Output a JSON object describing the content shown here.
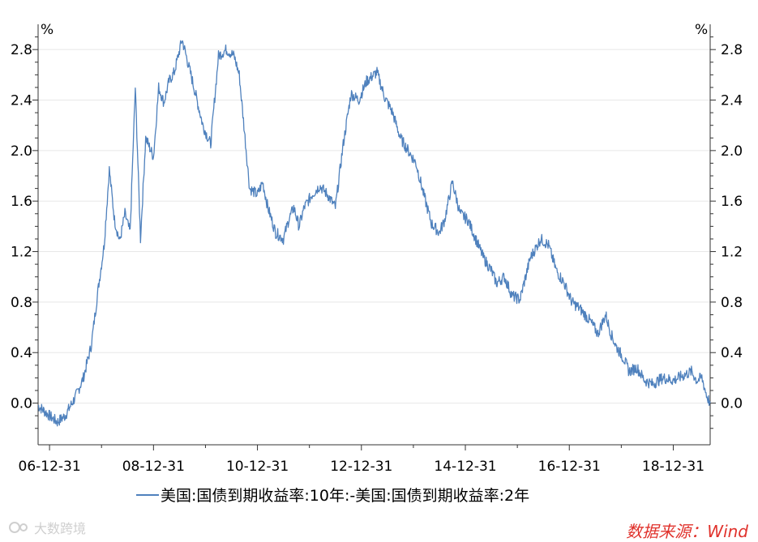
{
  "chart_data": {
    "type": "line",
    "left_unit": "%",
    "right_unit": "%",
    "y_ticks": [
      "0.0",
      "0.4",
      "0.8",
      "1.2",
      "1.6",
      "2.0",
      "2.4",
      "2.8"
    ],
    "x_ticks": [
      "06-12-31",
      "08-12-31",
      "10-12-31",
      "12-12-31",
      "14-12-31",
      "16-12-31",
      "18-12-31"
    ],
    "ylim": [
      -0.33,
      3.0
    ],
    "xlim": [
      2006.78,
      2019.71
    ],
    "grid": true,
    "legend_position": "bottom",
    "series": [
      {
        "name": "美国:国债到期收益率:10年:-美国:国债到期收益率:2年",
        "color": "#4f81bd",
        "x": [
          2006.78,
          2007.0,
          2007.15,
          2007.3,
          2007.5,
          2007.65,
          2007.8,
          2007.95,
          2008.05,
          2008.15,
          2008.25,
          2008.35,
          2008.45,
          2008.55,
          2008.65,
          2008.75,
          2008.85,
          2009.0,
          2009.1,
          2009.2,
          2009.3,
          2009.4,
          2009.55,
          2009.75,
          2009.95,
          2010.1,
          2010.25,
          2010.4,
          2010.55,
          2010.65,
          2010.75,
          2010.85,
          2011.0,
          2011.1,
          2011.2,
          2011.35,
          2011.5,
          2011.6,
          2011.7,
          2011.8,
          2011.9,
          2012.05,
          2012.2,
          2012.35,
          2012.5,
          2012.65,
          2012.8,
          2012.95,
          2013.1,
          2013.3,
          2013.45,
          2013.6,
          2013.75,
          2013.9,
          2014.05,
          2014.2,
          2014.35,
          2014.5,
          2014.6,
          2014.75,
          2014.9,
          2015.05,
          2015.2,
          2015.35,
          2015.5,
          2015.6,
          2015.75,
          2015.9,
          2016.05,
          2016.25,
          2016.45,
          2016.6,
          2016.75,
          2016.9,
          2017.05,
          2017.2,
          2017.4,
          2017.55,
          2017.7,
          2017.8,
          2017.9,
          2018.05,
          2018.15,
          2018.3,
          2018.45,
          2018.6,
          2018.8,
          2019.0,
          2019.2,
          2019.35,
          2019.45,
          2019.55,
          2019.65,
          2019.71
        ],
        "values": [
          -0.02,
          -0.1,
          -0.15,
          -0.1,
          0.05,
          0.2,
          0.45,
          0.95,
          1.25,
          1.85,
          1.45,
          1.28,
          1.5,
          1.35,
          2.5,
          1.3,
          2.1,
          1.95,
          2.5,
          2.38,
          2.55,
          2.62,
          2.88,
          2.55,
          2.2,
          2.05,
          2.75,
          2.8,
          2.75,
          2.6,
          2.15,
          1.7,
          1.65,
          1.75,
          1.55,
          1.35,
          1.3,
          1.45,
          1.55,
          1.4,
          1.55,
          1.65,
          1.72,
          1.65,
          1.55,
          2.05,
          2.45,
          2.4,
          2.55,
          2.62,
          2.42,
          2.3,
          2.1,
          2.0,
          1.9,
          1.65,
          1.42,
          1.35,
          1.45,
          1.75,
          1.5,
          1.45,
          1.3,
          1.15,
          1.05,
          0.95,
          1.0,
          0.85,
          0.82,
          1.15,
          1.3,
          1.25,
          1.05,
          0.95,
          0.8,
          0.75,
          0.65,
          0.55,
          0.7,
          0.55,
          0.45,
          0.35,
          0.25,
          0.28,
          0.18,
          0.15,
          0.2,
          0.18,
          0.22,
          0.25,
          0.18,
          0.2,
          0.05,
          0.0
        ]
      }
    ]
  },
  "legend": {
    "label": "美国:国债到期收益率:10年:-美国:国债到期收益率:2年"
  },
  "source": {
    "text": "数据来源：Wind"
  },
  "watermark": {
    "text": "大数跨境"
  }
}
